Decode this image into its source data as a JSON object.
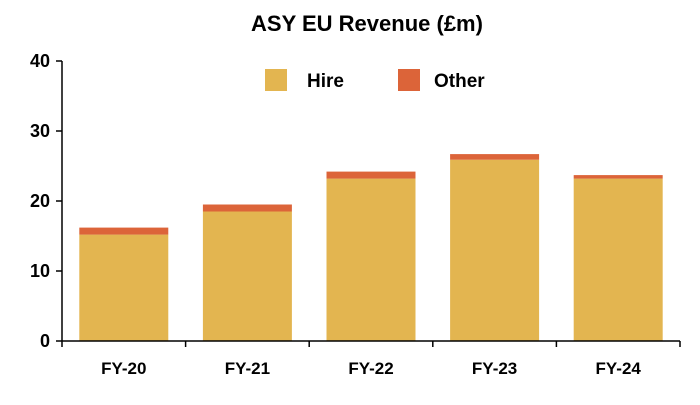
{
  "chart_data": {
    "type": "bar",
    "stacked": true,
    "title": "ASY EU Revenue (£m)",
    "xlabel": "",
    "ylabel": "",
    "ylim": [
      0,
      40
    ],
    "yticks": [
      0,
      10,
      20,
      30,
      40
    ],
    "grid": false,
    "legend_position": "top-center",
    "categories": [
      "FY-20",
      "FY-21",
      "FY-22",
      "FY-23",
      "FY-24"
    ],
    "series": [
      {
        "name": "Hire",
        "color": "#E3B550",
        "values": [
          15.2,
          18.5,
          23.2,
          25.9,
          23.2
        ]
      },
      {
        "name": "Other",
        "color": "#DC6439",
        "values": [
          1.0,
          1.0,
          1.0,
          0.8,
          0.5
        ]
      }
    ]
  }
}
